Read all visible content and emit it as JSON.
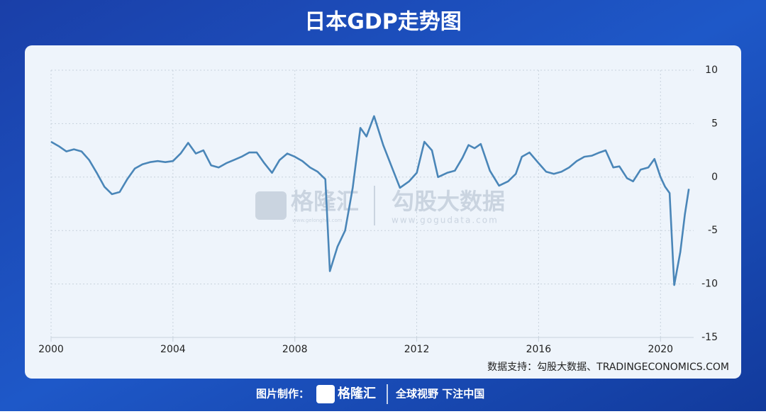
{
  "chart_data": {
    "type": "line",
    "title": "日本GDP走势图",
    "source": "数据支持：勾股大数据、TRADINGECONOMICS.COM",
    "watermark": {
      "brand": "格隆汇",
      "brand_url": "www.gelonghui.com",
      "partner": "勾股大数据",
      "partner_url": "www.gogudata.com"
    },
    "footer": {
      "made_by": "图片制作：",
      "brand": "格隆汇",
      "slogan": "全球视野 下注中国"
    },
    "xlim": [
      2000,
      2021.6
    ],
    "xticks": [
      2000,
      2004,
      2008,
      2012,
      2016,
      2020
    ],
    "ylim": [
      -15,
      10
    ],
    "yticks": [
      10,
      5,
      0,
      -5,
      -10,
      -15
    ],
    "grid": true,
    "series": [
      {
        "color": "#4a86b8",
        "x": [
          2000.0,
          2000.25,
          2000.5,
          2000.75,
          2001.0,
          2001.25,
          2001.5,
          2001.75,
          2002.0,
          2002.25,
          2002.5,
          2002.75,
          2003.0,
          2003.25,
          2003.5,
          2003.75,
          2004.0,
          2004.25,
          2004.5,
          2004.75,
          2005.0,
          2005.25,
          2005.5,
          2005.75,
          2006.0,
          2006.25,
          2006.5,
          2006.75,
          2007.0,
          2007.25,
          2007.5,
          2007.75,
          2008.0,
          2008.25,
          2008.5,
          2008.75,
          2009.0,
          2009.15,
          2009.4,
          2009.65,
          2009.9,
          2010.15,
          2010.35,
          2010.6,
          2010.9,
          2011.2,
          2011.45,
          2011.75,
          2012.0,
          2012.25,
          2012.5,
          2012.7,
          2013.0,
          2013.25,
          2013.5,
          2013.7,
          2013.9,
          2014.1,
          2014.4,
          2014.7,
          2015.0,
          2015.25,
          2015.45,
          2015.7,
          2016.0,
          2016.25,
          2016.5,
          2016.75,
          2017.0,
          2017.25,
          2017.5,
          2017.75,
          2018.0,
          2018.2,
          2018.45,
          2018.65,
          2018.9,
          2019.1,
          2019.35,
          2019.6,
          2019.8,
          2020.0,
          2020.15,
          2020.3,
          2020.45,
          2020.65,
          2020.8,
          2020.93
        ],
        "values": [
          3.3,
          2.9,
          2.4,
          2.6,
          2.4,
          1.6,
          0.4,
          -0.9,
          -1.6,
          -1.4,
          -0.2,
          0.8,
          1.2,
          1.4,
          1.5,
          1.4,
          1.5,
          2.2,
          3.2,
          2.2,
          2.5,
          1.1,
          0.9,
          1.3,
          1.6,
          1.9,
          2.3,
          2.3,
          1.3,
          0.4,
          1.6,
          2.2,
          1.9,
          1.5,
          0.9,
          0.5,
          -0.2,
          -8.8,
          -6.5,
          -5.0,
          -1.0,
          4.6,
          3.8,
          5.7,
          3.0,
          0.8,
          -1.0,
          -0.4,
          0.4,
          3.3,
          2.5,
          0.0,
          0.4,
          0.6,
          1.8,
          3.0,
          2.7,
          3.1,
          0.6,
          -0.8,
          -0.4,
          0.3,
          1.9,
          2.3,
          1.3,
          0.5,
          0.3,
          0.5,
          0.9,
          1.5,
          1.9,
          2.0,
          2.3,
          2.5,
          0.9,
          1.0,
          -0.1,
          -0.4,
          0.7,
          0.9,
          1.7,
          0.0,
          -0.9,
          -1.5,
          -10.1,
          -7.0,
          -3.5,
          -1.1
        ]
      }
    ]
  }
}
